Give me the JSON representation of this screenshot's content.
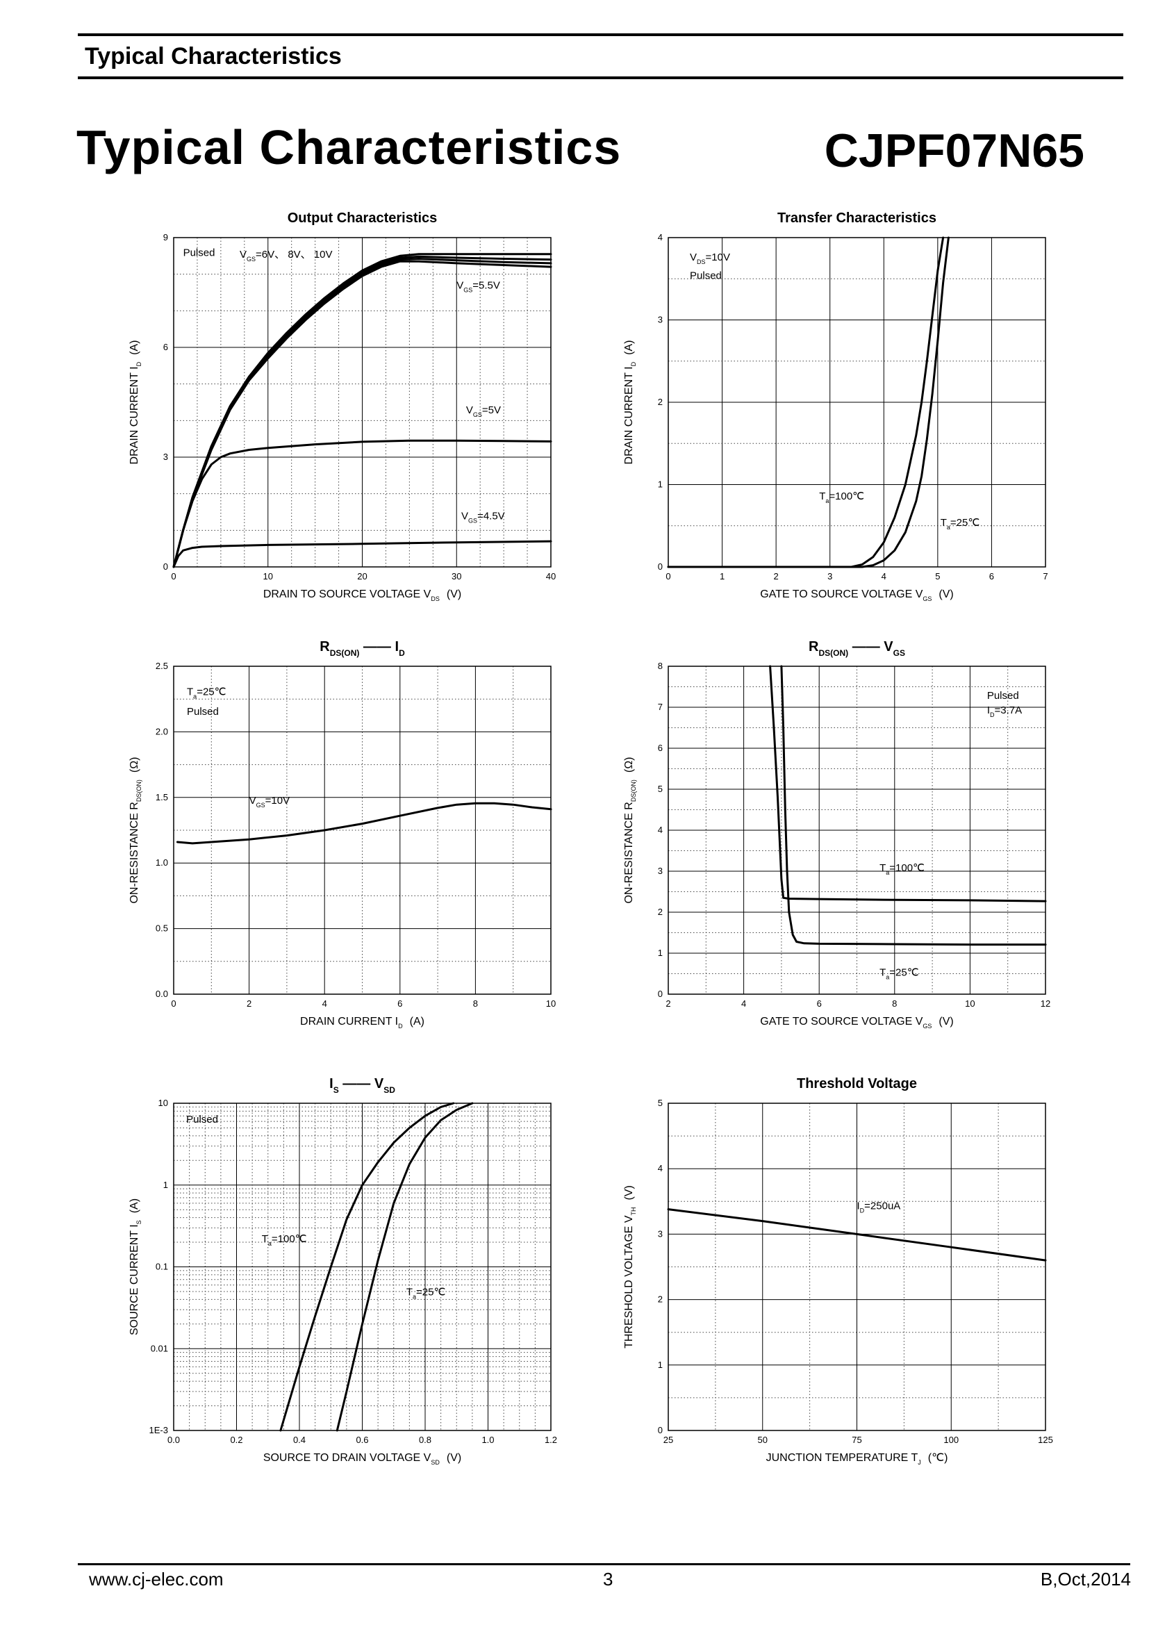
{
  "header": {
    "title": "Typical Characteristics"
  },
  "page": {
    "title": "Typical Characteristics",
    "part_number": "CJPF07N65"
  },
  "footer": {
    "website": "www.cj-elec.com",
    "page_number": "3",
    "revision": "B,Oct,2014"
  },
  "chart_data": [
    {
      "id": "output",
      "type": "line",
      "title": "Output Characteristics",
      "xlabel": "DRAIN TO SOURCE VOLTAGE",
      "xlabel_sym": "V",
      "xlabel_sub": "DS",
      "xlabel_unit": "(V)",
      "ylabel": "DRAIN CURRENT",
      "ylabel_sym": "I",
      "ylabel_sub": "D",
      "ylabel_unit": "(A)",
      "xlim": [
        0,
        40
      ],
      "ylim": [
        0,
        9
      ],
      "xticks": [
        0,
        10,
        20,
        30,
        40
      ],
      "yticks": [
        0,
        3,
        6,
        9
      ],
      "xminor": 4,
      "yminor": 3,
      "annotations": [
        {
          "text": "Pulsed",
          "x": 1,
          "y": 8.5
        },
        {
          "text": "V",
          "sub": "GS",
          "after": "=6V、 8V、 10V",
          "x": 7,
          "y": 8.45
        },
        {
          "text": "V",
          "sub": "GS",
          "after": "=5.5V",
          "x": 30,
          "y": 7.6
        },
        {
          "text": "V",
          "sub": "GS",
          "after": "=5V",
          "x": 31,
          "y": 4.2
        },
        {
          "text": "V",
          "sub": "GS",
          "after": "=4.5V",
          "x": 30.5,
          "y": 1.3
        }
      ],
      "series": [
        {
          "name": "VGS=10V",
          "x": [
            0,
            1,
            2,
            4,
            6,
            8,
            10,
            12,
            14,
            16,
            18,
            20,
            22,
            24,
            26,
            30,
            35,
            40
          ],
          "y": [
            0,
            1.0,
            1.9,
            3.3,
            4.4,
            5.2,
            5.85,
            6.4,
            6.9,
            7.35,
            7.75,
            8.1,
            8.35,
            8.5,
            8.55,
            8.55,
            8.55,
            8.55
          ]
        },
        {
          "name": "VGS=8V",
          "x": [
            0,
            1,
            2,
            4,
            6,
            8,
            10,
            12,
            14,
            16,
            18,
            20,
            22,
            24,
            26,
            30,
            35,
            40
          ],
          "y": [
            0,
            1.0,
            1.9,
            3.3,
            4.4,
            5.2,
            5.8,
            6.35,
            6.85,
            7.3,
            7.7,
            8.05,
            8.3,
            8.45,
            8.48,
            8.45,
            8.42,
            8.4
          ]
        },
        {
          "name": "VGS=6V",
          "x": [
            0,
            1,
            2,
            4,
            6,
            8,
            10,
            12,
            14,
            16,
            18,
            20,
            22,
            24,
            26,
            30,
            35,
            40
          ],
          "y": [
            0,
            1.0,
            1.9,
            3.25,
            4.35,
            5.15,
            5.75,
            6.3,
            6.8,
            7.25,
            7.65,
            8.0,
            8.25,
            8.4,
            8.42,
            8.38,
            8.33,
            8.3
          ]
        },
        {
          "name": "VGS=5.5V",
          "x": [
            0,
            1,
            2,
            4,
            6,
            8,
            10,
            12,
            14,
            16,
            18,
            20,
            22,
            24,
            26,
            30,
            35,
            40
          ],
          "y": [
            0,
            1.0,
            1.85,
            3.2,
            4.3,
            5.1,
            5.7,
            6.25,
            6.75,
            7.2,
            7.6,
            7.95,
            8.2,
            8.35,
            8.35,
            8.3,
            8.25,
            8.2
          ]
        },
        {
          "name": "VGS=5V",
          "x": [
            0,
            1,
            2,
            3,
            4,
            5,
            6,
            8,
            10,
            15,
            20,
            25,
            30,
            35,
            40
          ],
          "y": [
            0,
            1.0,
            1.8,
            2.4,
            2.8,
            3.0,
            3.1,
            3.2,
            3.25,
            3.35,
            3.42,
            3.45,
            3.45,
            3.44,
            3.43
          ]
        },
        {
          "name": "VGS=4.5V",
          "x": [
            0,
            0.5,
            1,
            2,
            3,
            5,
            10,
            20,
            30,
            40
          ],
          "y": [
            0,
            0.3,
            0.45,
            0.52,
            0.55,
            0.57,
            0.6,
            0.63,
            0.67,
            0.7
          ]
        }
      ]
    },
    {
      "id": "transfer",
      "type": "line",
      "title": "Transfer Characteristics",
      "xlabel": "GATE TO SOURCE VOLTAGE",
      "xlabel_sym": "V",
      "xlabel_sub": "GS",
      "xlabel_unit": "(V)",
      "ylabel": "DRAIN CURRENT",
      "ylabel_sym": "I",
      "ylabel_sub": "D",
      "ylabel_unit": "(A)",
      "xlim": [
        0,
        7
      ],
      "ylim": [
        0,
        4
      ],
      "xticks": [
        0,
        1,
        2,
        3,
        4,
        5,
        6,
        7
      ],
      "yticks": [
        0,
        1,
        2,
        3,
        4
      ],
      "xminor": 1,
      "yminor": 2,
      "annotations": [
        {
          "text": "V",
          "sub": "DS",
          "after": "=10V",
          "x": 0.4,
          "y": 3.72
        },
        {
          "text": "Pulsed",
          "x": 0.4,
          "y": 3.5
        },
        {
          "text": "T",
          "sub": "a",
          "after": "=100℃",
          "x": 2.8,
          "y": 0.82
        },
        {
          "text": "T",
          "sub": "a",
          "after": "=25℃",
          "x": 5.05,
          "y": 0.5
        }
      ],
      "series": [
        {
          "name": "Ta=100℃",
          "x": [
            0,
            3.4,
            3.6,
            3.8,
            4.0,
            4.2,
            4.4,
            4.6,
            4.7,
            4.8,
            4.9,
            5.0,
            5.1
          ],
          "y": [
            0,
            0,
            0.03,
            0.12,
            0.3,
            0.6,
            1.0,
            1.6,
            2.0,
            2.5,
            3.05,
            3.6,
            4.0
          ]
        },
        {
          "name": "Ta=25℃",
          "x": [
            0,
            3.6,
            3.8,
            4.0,
            4.2,
            4.4,
            4.6,
            4.7,
            4.8,
            4.9,
            5.0,
            5.1,
            5.2
          ],
          "y": [
            0,
            0,
            0.02,
            0.08,
            0.2,
            0.42,
            0.8,
            1.1,
            1.55,
            2.1,
            2.75,
            3.45,
            4.0
          ]
        }
      ]
    },
    {
      "id": "rds_id",
      "type": "line",
      "title": "R",
      "title_sub": "DS(ON)",
      "title_after": "I",
      "title_after_sub": "D",
      "xlabel": "DRAIN CURRENT",
      "xlabel_sym": "I",
      "xlabel_sub": "D",
      "xlabel_unit": "(A)",
      "ylabel": "ON-RESISTANCE",
      "ylabel_sym": "R",
      "ylabel_sub": "DS(ON)",
      "ylabel_unit": "(Ω)",
      "xlim": [
        0,
        10
      ],
      "ylim": [
        0,
        2.5
      ],
      "xticks": [
        0,
        2,
        4,
        6,
        8,
        10
      ],
      "yticks": [
        0.0,
        0.5,
        1.0,
        1.5,
        2.0,
        2.5
      ],
      "ytick_labels": [
        "0.0",
        "0.5",
        "1.0",
        "1.5",
        "2.0",
        "2.5"
      ],
      "xminor": 2,
      "yminor": 2,
      "annotations": [
        {
          "text": "T",
          "sub": "a",
          "after": "=25℃",
          "x": 0.35,
          "y": 2.28
        },
        {
          "text": "Pulsed",
          "x": 0.35,
          "y": 2.13
        },
        {
          "text": "V",
          "sub": "GS",
          "after": "=10V",
          "x": 2.0,
          "y": 1.45
        }
      ],
      "series": [
        {
          "name": "VGS=10V",
          "x": [
            0.1,
            0.5,
            1,
            2,
            3,
            4,
            5,
            6,
            7,
            7.5,
            8,
            8.5,
            9,
            9.5,
            10
          ],
          "y": [
            1.16,
            1.15,
            1.16,
            1.18,
            1.21,
            1.25,
            1.3,
            1.36,
            1.42,
            1.445,
            1.455,
            1.455,
            1.445,
            1.425,
            1.41
          ]
        }
      ]
    },
    {
      "id": "rds_vgs",
      "type": "line",
      "title": "R",
      "title_sub": "DS(ON)",
      "title_after": "V",
      "title_after_sub": "GS",
      "xlabel": "GATE TO SOURCE VOLTAGE",
      "xlabel_sym": "V",
      "xlabel_sub": "GS",
      "xlabel_unit": "(V)",
      "ylabel": "ON-RESISTANCE",
      "ylabel_sym": "R",
      "ylabel_sub": "DS(ON)",
      "ylabel_unit": "(Ω)",
      "xlim": [
        2,
        12
      ],
      "ylim": [
        0,
        8
      ],
      "xticks": [
        2,
        4,
        6,
        8,
        10,
        12
      ],
      "yticks": [
        0,
        1,
        2,
        3,
        4,
        5,
        6,
        7,
        8
      ],
      "xminor": 2,
      "yminor": 2,
      "annotations": [
        {
          "text": "Pulsed",
          "x": 10.45,
          "y": 7.2
        },
        {
          "text": "I",
          "sub": "D",
          "after": "=3.7A",
          "x": 10.45,
          "y": 6.85
        },
        {
          "text": "T",
          "sub": "a",
          "after": "=100℃",
          "x": 7.6,
          "y": 3.0
        },
        {
          "text": "T",
          "sub": "a",
          "after": "=25℃",
          "x": 7.6,
          "y": 0.45
        }
      ],
      "series": [
        {
          "name": "Ta=100℃",
          "x": [
            4.7,
            4.8,
            4.9,
            4.95,
            5.0,
            5.05,
            5.2,
            6,
            8,
            10,
            12
          ],
          "y": [
            8.0,
            6.5,
            4.8,
            3.8,
            2.8,
            2.35,
            2.33,
            2.32,
            2.3,
            2.29,
            2.27
          ]
        },
        {
          "name": "Ta=25℃",
          "x": [
            5.0,
            5.05,
            5.1,
            5.15,
            5.2,
            5.3,
            5.4,
            5.6,
            6,
            8,
            10,
            12
          ],
          "y": [
            8.0,
            6.5,
            4.5,
            3.0,
            2.0,
            1.45,
            1.28,
            1.24,
            1.23,
            1.22,
            1.21,
            1.21
          ]
        }
      ]
    },
    {
      "id": "is_vsd",
      "type": "line",
      "title": "I",
      "title_sub": "S",
      "title_after": "V",
      "title_after_sub": "SD",
      "xlabel": "SOURCE TO DRAIN VOLTAGE",
      "xlabel_sym": "V",
      "xlabel_sub": "SD",
      "xlabel_unit": "(V)",
      "ylabel": "SOURCE CURRENT",
      "ylabel_sym": "I",
      "ylabel_sub": "S",
      "ylabel_unit": "(A)",
      "yscale": "log",
      "xlim": [
        0.0,
        1.2
      ],
      "ylim": [
        0.001,
        10
      ],
      "xticks": [
        0.0,
        0.2,
        0.4,
        0.6,
        0.8,
        1.0,
        1.2
      ],
      "xtick_labels": [
        "0.0",
        "0.2",
        "0.4",
        "0.6",
        "0.8",
        "1.0",
        "1.2"
      ],
      "yticks": [
        0.001,
        0.01,
        0.1,
        1,
        10
      ],
      "ytick_labels": [
        "1E-3",
        "0.01",
        "0.1",
        "1",
        "10"
      ],
      "xminor": 4,
      "annotations": [
        {
          "text": "Pulsed",
          "x": 0.04,
          "y": 5.8
        },
        {
          "text": "T",
          "sub": "a",
          "after": "=100℃",
          "x": 0.28,
          "y": 0.2
        },
        {
          "text": "T",
          "sub": "a",
          "after": "=25℃",
          "x": 0.74,
          "y": 0.045
        }
      ],
      "series": [
        {
          "name": "Ta=100℃",
          "x": [
            0.34,
            0.4,
            0.45,
            0.5,
            0.55,
            0.6,
            0.65,
            0.7,
            0.75,
            0.8,
            0.85,
            0.89
          ],
          "y": [
            0.001,
            0.006,
            0.025,
            0.1,
            0.38,
            1.0,
            1.9,
            3.3,
            5.0,
            7.0,
            9.0,
            10.0
          ]
        },
        {
          "name": "Ta=25℃",
          "x": [
            0.52,
            0.55,
            0.6,
            0.65,
            0.7,
            0.75,
            0.8,
            0.85,
            0.9,
            0.95
          ],
          "y": [
            0.001,
            0.003,
            0.02,
            0.12,
            0.6,
            1.8,
            3.8,
            6.2,
            8.3,
            10.0
          ]
        }
      ]
    },
    {
      "id": "threshold",
      "type": "line",
      "title": "Threshold Voltage",
      "xlabel": "JUNCTION TEMPERATURE",
      "xlabel_sym": "T",
      "xlabel_sub": "J",
      "xlabel_unit": "(℃)",
      "ylabel": "THRESHOLD VOLTAGE",
      "ylabel_sym": "V",
      "ylabel_sub": "TH",
      "ylabel_unit": "(V)",
      "xlim": [
        25,
        125
      ],
      "ylim": [
        0,
        5
      ],
      "xticks": [
        25,
        50,
        75,
        100,
        125
      ],
      "yticks": [
        0,
        1,
        2,
        3,
        4,
        5
      ],
      "xminor": 2,
      "yminor": 2,
      "annotations": [
        {
          "text": "I",
          "sub": "D",
          "after": "=250uA",
          "x": 75,
          "y": 3.38
        }
      ],
      "series": [
        {
          "name": "ID=250uA",
          "x": [
            25,
            50,
            75,
            100,
            125
          ],
          "y": [
            3.38,
            3.2,
            3.0,
            2.8,
            2.6
          ]
        }
      ]
    }
  ]
}
